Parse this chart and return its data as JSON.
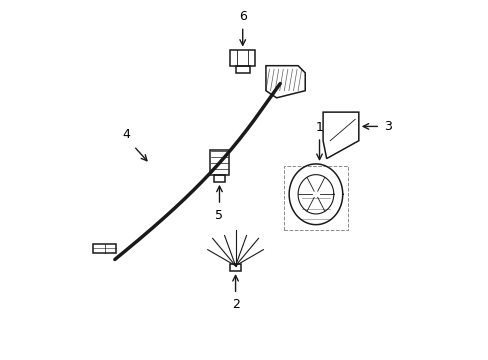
{
  "title": "",
  "bg_color": "#ffffff",
  "line_color": "#1a1a1a",
  "label_color": "#000000",
  "figsize": [
    4.89,
    3.6
  ],
  "dpi": 100
}
